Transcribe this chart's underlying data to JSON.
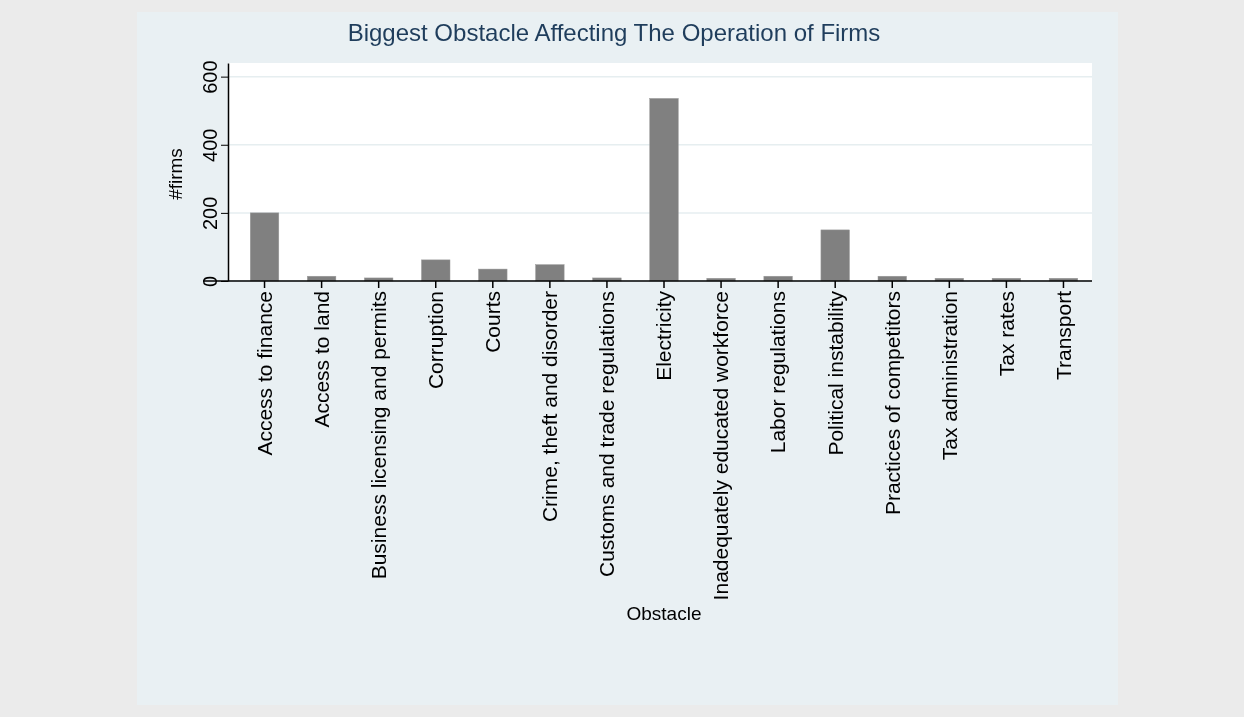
{
  "chart_data": {
    "type": "bar",
    "title": "Biggest Obstacle Affecting The Operation of Firms",
    "xlabel": "Obstacle",
    "ylabel": "#firms",
    "categories": [
      "Access to finance",
      "Access to land",
      "Business licensing and permits",
      "Corruption",
      "Courts",
      "Crime, theft and disorder",
      "Customs and trade regulations",
      "Electricity",
      "Inadequately educated workforce",
      "Labor regulations",
      "Political instability",
      "Practices of competitors",
      "Tax administration",
      "Tax rates",
      "Transport"
    ],
    "values": [
      200,
      14,
      9,
      62,
      35,
      48,
      9,
      536,
      8,
      14,
      150,
      14,
      8,
      8,
      8
    ],
    "color": "#808080",
    "ylim": [
      0,
      640
    ],
    "yticks": [
      0,
      200,
      400,
      600
    ],
    "grid": "y"
  }
}
